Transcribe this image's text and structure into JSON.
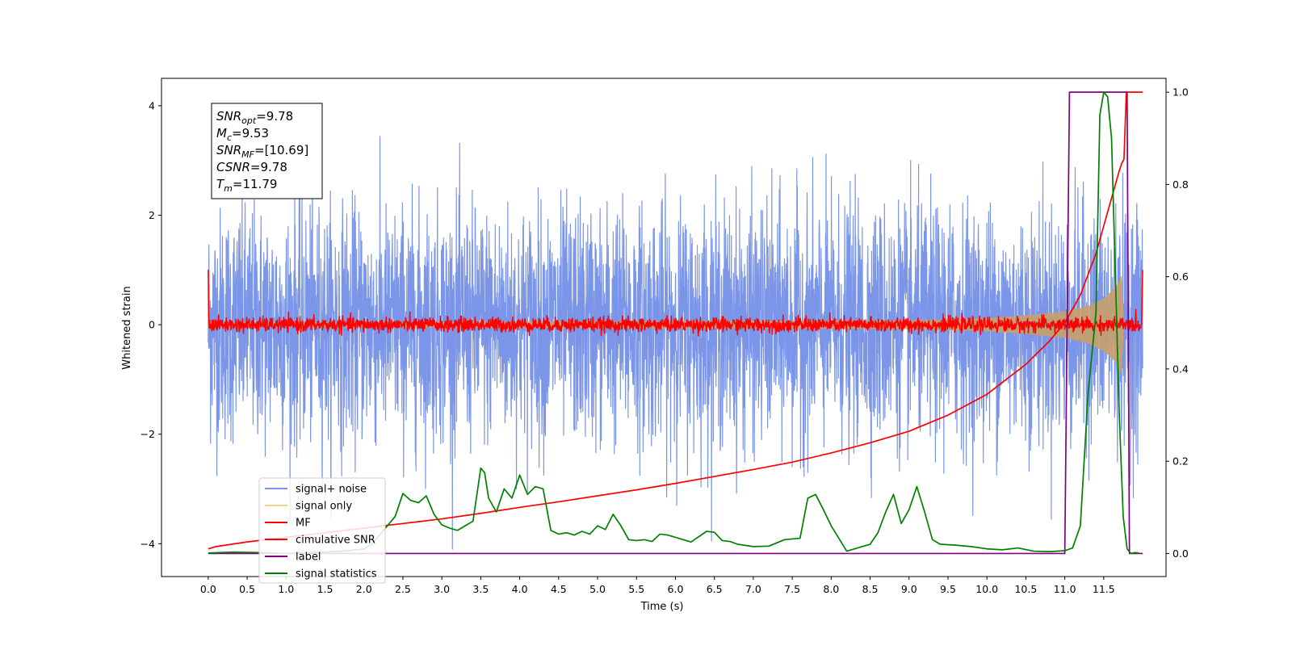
{
  "chart_data": {
    "type": "line",
    "xlabel": "Time (s)",
    "ylabel_left": "Whitened strain",
    "ylabel_right": "",
    "xlim": [
      -0.6,
      12.3
    ],
    "ylim_left": [
      -4.6,
      4.5
    ],
    "ylim_right": [
      -0.05,
      1.03
    ],
    "x_ticks": [
      "0.0",
      "0.5",
      "1.0",
      "1.5",
      "2.0",
      "2.5",
      "3.0",
      "3.5",
      "4.0",
      "4.5",
      "5.0",
      "5.5",
      "6.0",
      "6.5",
      "7.0",
      "7.5",
      "8.0",
      "8.5",
      "9.0",
      "9.5",
      "10.0",
      "10.5",
      "11.0",
      "11.5"
    ],
    "y_ticks_left": [
      "4",
      "2",
      "0",
      "−2",
      "−4"
    ],
    "y_ticks_right": [
      "0.0",
      "0.2",
      "0.4",
      "0.6",
      "0.8",
      "1.0"
    ],
    "grid": false,
    "legend_position": "lower-left",
    "annotation": [
      {
        "base": "SNR",
        "sub": "opt",
        "value": "=9.78"
      },
      {
        "base": "M",
        "sub": "c",
        "value": "=9.53"
      },
      {
        "base": "SNR",
        "sub": "MF",
        "value": "=[10.69]"
      },
      {
        "base": "CSNR",
        "sub": "",
        "value": "=9.78"
      },
      {
        "base": "T",
        "sub": "m",
        "value": "=11.79"
      }
    ],
    "series": [
      {
        "name": "signal+ noise",
        "axis": "left",
        "color": "#7b96e8",
        "description_shape": "gaussian noise band, approx std 1.1, spikes to about ±4",
        "x_range": [
          0.0,
          12.0
        ],
        "approx_envelope": [
          -3.3,
          3.5
        ]
      },
      {
        "name": "signal only",
        "axis": "left",
        "color": "#c8a06a",
        "shape": "chirp",
        "amplitude_points": {
          "x": [
            0.0,
            9.0,
            10.0,
            10.5,
            11.0,
            11.3,
            11.5,
            11.65,
            11.73,
            11.76
          ],
          "a": [
            0.04,
            0.08,
            0.12,
            0.17,
            0.24,
            0.34,
            0.48,
            0.68,
            0.9,
            0.02
          ]
        }
      },
      {
        "name": "MF",
        "axis": "left",
        "color": "#ff0000",
        "shape": "noisy around 0, std approx 0.07, edge spikes to about 1.0 at x=0.0 and x=12.0"
      },
      {
        "name": "cimulative SNR",
        "axis": "right",
        "color": "#ff0000",
        "x": [
          0.0,
          0.1,
          0.5,
          1.0,
          1.5,
          2.0,
          2.5,
          3.0,
          3.5,
          4.0,
          4.5,
          5.0,
          5.5,
          6.0,
          6.5,
          7.0,
          7.5,
          8.0,
          8.5,
          9.0,
          9.5,
          10.0,
          10.5,
          10.8,
          11.0,
          11.2,
          11.4,
          11.55,
          11.65,
          11.7,
          11.73,
          11.76,
          11.79,
          11.95,
          12.0
        ],
        "y": [
          0.01,
          0.015,
          0.025,
          0.035,
          0.045,
          0.055,
          0.065,
          0.075,
          0.087,
          0.1,
          0.112,
          0.125,
          0.138,
          0.152,
          0.167,
          0.182,
          0.198,
          0.218,
          0.24,
          0.265,
          0.3,
          0.345,
          0.41,
          0.46,
          0.5,
          0.56,
          0.65,
          0.74,
          0.8,
          0.83,
          0.845,
          0.855,
          1.0,
          1.0,
          1.0
        ]
      },
      {
        "name": "label",
        "axis": "right",
        "color": "#800080",
        "x": [
          0.0,
          11.0,
          11.06,
          11.8,
          11.83,
          12.0
        ],
        "y": [
          0.0,
          0.0,
          1.0,
          1.0,
          0.0,
          0.0
        ]
      },
      {
        "name": "signal statistics",
        "axis": "right",
        "color": "#008000",
        "x": [
          0.0,
          0.3,
          0.7,
          1.0,
          1.3,
          1.6,
          1.8,
          2.0,
          2.1,
          2.2,
          2.3,
          2.4,
          2.5,
          2.6,
          2.7,
          2.8,
          2.9,
          3.0,
          3.1,
          3.2,
          3.3,
          3.4,
          3.5,
          3.55,
          3.6,
          3.7,
          3.8,
          3.9,
          4.0,
          4.1,
          4.2,
          4.3,
          4.4,
          4.5,
          4.6,
          4.7,
          4.8,
          4.9,
          5.0,
          5.1,
          5.2,
          5.3,
          5.4,
          5.5,
          5.6,
          5.7,
          5.8,
          5.9,
          6.0,
          6.2,
          6.4,
          6.5,
          6.6,
          6.7,
          6.8,
          7.0,
          7.2,
          7.4,
          7.6,
          7.7,
          7.8,
          7.9,
          8.0,
          8.2,
          8.4,
          8.5,
          8.6,
          8.7,
          8.8,
          8.9,
          9.0,
          9.1,
          9.2,
          9.3,
          9.4,
          9.6,
          9.8,
          10.0,
          10.2,
          10.4,
          10.6,
          10.8,
          11.0,
          11.1,
          11.2,
          11.3,
          11.4,
          11.45,
          11.5,
          11.55,
          11.6,
          11.65,
          11.7,
          11.75,
          11.8,
          11.85,
          11.9,
          11.95
        ],
        "y": [
          0.001,
          0.003,
          0.002,
          0.0,
          0.002,
          0.004,
          0.006,
          0.01,
          0.02,
          0.04,
          0.06,
          0.08,
          0.13,
          0.115,
          0.11,
          0.125,
          0.085,
          0.062,
          0.055,
          0.05,
          0.06,
          0.07,
          0.185,
          0.175,
          0.12,
          0.09,
          0.14,
          0.12,
          0.17,
          0.128,
          0.145,
          0.14,
          0.05,
          0.042,
          0.045,
          0.04,
          0.048,
          0.042,
          0.06,
          0.052,
          0.085,
          0.06,
          0.03,
          0.028,
          0.03,
          0.026,
          0.042,
          0.04,
          0.035,
          0.025,
          0.048,
          0.046,
          0.028,
          0.026,
          0.02,
          0.015,
          0.016,
          0.03,
          0.033,
          0.12,
          0.128,
          0.095,
          0.06,
          0.005,
          0.015,
          0.02,
          0.045,
          0.09,
          0.128,
          0.065,
          0.095,
          0.145,
          0.09,
          0.03,
          0.02,
          0.018,
          0.015,
          0.01,
          0.008,
          0.012,
          0.005,
          0.004,
          0.006,
          0.012,
          0.06,
          0.35,
          0.52,
          0.95,
          1.0,
          0.99,
          0.9,
          0.6,
          0.3,
          0.08,
          0.01,
          0.0,
          0.002,
          0.001
        ]
      }
    ]
  }
}
